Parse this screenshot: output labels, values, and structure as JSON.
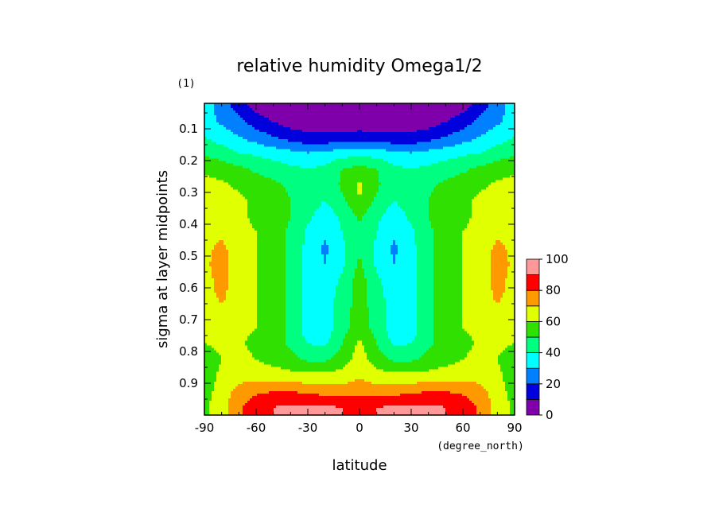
{
  "chart_data": {
    "type": "heatmap",
    "title": "relative humidity Omega1/2",
    "xlabel": "latitude",
    "ylabel": "sigma at layer midpoints",
    "x_units": "(degree_north)",
    "y_units": "(1)",
    "xlim": [
      -90,
      90
    ],
    "ylim": [
      1.0,
      0.02
    ],
    "x_ticks": [
      "-90",
      "-60",
      "-30",
      "0",
      "30",
      "60",
      "90"
    ],
    "y_ticks": [
      "0.1",
      "0.2",
      "0.3",
      "0.4",
      "0.5",
      "0.6",
      "0.7",
      "0.8",
      "0.9"
    ],
    "colorbar": {
      "levels": [
        0,
        10,
        20,
        30,
        40,
        50,
        60,
        70,
        80,
        90,
        100
      ],
      "tick_labels": [
        "0",
        "20",
        "40",
        "60",
        "80",
        "100"
      ],
      "colors": [
        "#7f00aa",
        "#0000dd",
        "#0080ff",
        "#00ffff",
        "#00ff80",
        "#30e000",
        "#e0ff00",
        "#ff9900",
        "#ff0000",
        "#ff9999"
      ]
    },
    "sigma": [
      0.025,
      0.075,
      0.125,
      0.175,
      0.225,
      0.275,
      0.325,
      0.375,
      0.425,
      0.475,
      0.525,
      0.575,
      0.625,
      0.675,
      0.725,
      0.775,
      0.825,
      0.875,
      0.925,
      0.975
    ],
    "latitude": [
      -90,
      -80,
      -70,
      -60,
      -50,
      -40,
      -30,
      -20,
      -10,
      0,
      10,
      20,
      30,
      40,
      50,
      60,
      70,
      80,
      90
    ],
    "values": [
      [
        35,
        25,
        15,
        5,
        5,
        5,
        5,
        5,
        5,
        5,
        5,
        5,
        5,
        5,
        5,
        5,
        15,
        25,
        35
      ],
      [
        35,
        28,
        22,
        15,
        9,
        5,
        5,
        5,
        5,
        5,
        5,
        5,
        5,
        5,
        9,
        15,
        22,
        28,
        35
      ],
      [
        40,
        35,
        30,
        25,
        20,
        15,
        12,
        12,
        12,
        13,
        12,
        12,
        12,
        15,
        20,
        25,
        30,
        35,
        40
      ],
      [
        48,
        45,
        40,
        38,
        35,
        33,
        30,
        32,
        35,
        37,
        35,
        32,
        30,
        33,
        35,
        38,
        40,
        45,
        48
      ],
      [
        58,
        55,
        52,
        48,
        45,
        42,
        40,
        42,
        50,
        53,
        50,
        42,
        40,
        42,
        45,
        48,
        52,
        55,
        58
      ],
      [
        63,
        62,
        58,
        55,
        52,
        48,
        44,
        42,
        52,
        62,
        52,
        42,
        44,
        48,
        52,
        55,
        58,
        62,
        63
      ],
      [
        65,
        64,
        62,
        58,
        55,
        50,
        45,
        40,
        48,
        60,
        48,
        40,
        45,
        50,
        55,
        58,
        62,
        64,
        65
      ],
      [
        67,
        66,
        62,
        58,
        55,
        50,
        42,
        35,
        42,
        52,
        42,
        35,
        42,
        50,
        55,
        58,
        62,
        66,
        67
      ],
      [
        68,
        68,
        64,
        60,
        55,
        48,
        38,
        32,
        40,
        48,
        40,
        32,
        38,
        48,
        55,
        60,
        64,
        68,
        68
      ],
      [
        68,
        72,
        65,
        60,
        55,
        48,
        37,
        28,
        38,
        48,
        38,
        28,
        37,
        48,
        55,
        60,
        65,
        72,
        68
      ],
      [
        68,
        74,
        65,
        60,
        55,
        48,
        37,
        30,
        38,
        52,
        38,
        30,
        37,
        48,
        55,
        60,
        65,
        74,
        68
      ],
      [
        67,
        73,
        65,
        60,
        55,
        48,
        37,
        34,
        42,
        55,
        42,
        34,
        37,
        48,
        55,
        60,
        65,
        73,
        67
      ],
      [
        66,
        72,
        65,
        60,
        55,
        48,
        36,
        35,
        44,
        55,
        44,
        35,
        36,
        48,
        55,
        60,
        65,
        72,
        66
      ],
      [
        65,
        68,
        64,
        60,
        55,
        48,
        35,
        35,
        45,
        55,
        45,
        35,
        35,
        48,
        55,
        60,
        64,
        68,
        65
      ],
      [
        63,
        65,
        62,
        60,
        55,
        48,
        35,
        35,
        46,
        55,
        46,
        35,
        35,
        48,
        55,
        60,
        62,
        65,
        63
      ],
      [
        60,
        62,
        61,
        58,
        54,
        48,
        40,
        38,
        50,
        62,
        50,
        38,
        40,
        48,
        54,
        58,
        61,
        62,
        60
      ],
      [
        55,
        60,
        62,
        60,
        57,
        53,
        48,
        48,
        55,
        65,
        55,
        48,
        48,
        53,
        57,
        60,
        62,
        60,
        55
      ],
      [
        55,
        62,
        66,
        65,
        64,
        63,
        62,
        62,
        64,
        68,
        64,
        62,
        62,
        63,
        64,
        65,
        66,
        62,
        55
      ],
      [
        56,
        64,
        74,
        78,
        80,
        80,
        78,
        76,
        75,
        77,
        75,
        76,
        78,
        80,
        80,
        78,
        74,
        64,
        56
      ],
      [
        58,
        66,
        78,
        86,
        90,
        92,
        92,
        91,
        90,
        89,
        90,
        91,
        92,
        92,
        90,
        86,
        78,
        66,
        58
      ]
    ]
  }
}
